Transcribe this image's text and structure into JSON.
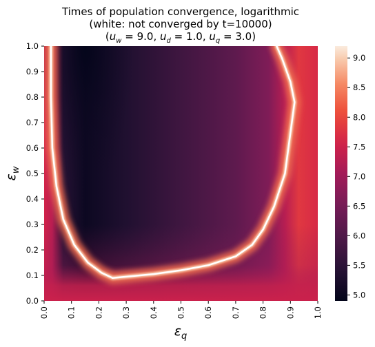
{
  "chart_data": {
    "type": "heatmap",
    "title_lines": [
      "Times of population convergence, logarithmic",
      "(white: not converged by t=10000)",
      "(u_w = 9.0, u_d = 1.0, u_q = 3.0)"
    ],
    "title_params": [
      {
        "base": "u",
        "sub": "w",
        "value": "9.0"
      },
      {
        "base": "u",
        "sub": "d",
        "value": "1.0"
      },
      {
        "base": "u",
        "sub": "q",
        "value": "3.0"
      }
    ],
    "xlabel": {
      "base": "ε",
      "sub": "q"
    },
    "ylabel": {
      "base": "ε",
      "sub": "w"
    },
    "xlim": [
      0.0,
      1.0
    ],
    "ylim": [
      0.0,
      1.0
    ],
    "x_ticks": [
      "0.0",
      "0.1",
      "0.2",
      "0.3",
      "0.4",
      "0.5",
      "0.6",
      "0.7",
      "0.8",
      "0.9",
      "1.0"
    ],
    "y_ticks": [
      "0.0",
      "0.1",
      "0.2",
      "0.3",
      "0.4",
      "0.5",
      "0.6",
      "0.7",
      "0.8",
      "0.9",
      "1.0"
    ],
    "colorbar": {
      "min": 4.9,
      "max": 9.2,
      "ticks": [
        "5.0",
        "5.5",
        "6.0",
        "6.5",
        "7.0",
        "7.5",
        "8.0",
        "8.5",
        "9.0"
      ],
      "colormap": "rocket"
    },
    "not_converged_boundary": {
      "x": [
        0.025,
        0.025,
        0.03,
        0.045,
        0.07,
        0.11,
        0.16,
        0.21,
        0.25,
        0.3,
        0.4,
        0.5,
        0.6,
        0.7,
        0.76,
        0.8,
        0.84,
        0.88,
        0.915,
        0.9,
        0.87,
        0.85
      ],
      "y": [
        1.0,
        0.8,
        0.6,
        0.45,
        0.32,
        0.22,
        0.15,
        0.11,
        0.09,
        0.095,
        0.105,
        0.12,
        0.14,
        0.175,
        0.22,
        0.28,
        0.37,
        0.5,
        0.78,
        0.86,
        0.95,
        1.0
      ]
    },
    "minimum_region_anchor": {
      "x": 0.15,
      "y": 1.0,
      "value": 4.9
    }
  }
}
